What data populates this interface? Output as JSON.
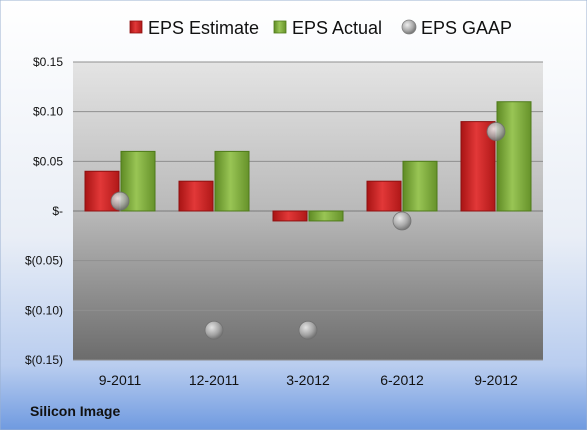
{
  "company": "Silicon Image",
  "chart_data": {
    "type": "bar",
    "categories": [
      "9-2011",
      "12-2011",
      "3-2012",
      "6-2012",
      "9-2012"
    ],
    "series": [
      {
        "name": "EPS Estimate",
        "kind": "bar",
        "color": "#cc2222",
        "values": [
          0.04,
          0.03,
          -0.01,
          0.03,
          0.09
        ]
      },
      {
        "name": "EPS Actual",
        "kind": "bar",
        "color": "#7fae3c",
        "values": [
          0.06,
          0.06,
          -0.01,
          0.05,
          0.11
        ]
      },
      {
        "name": "EPS GAAP",
        "kind": "marker",
        "color": "#a8a8a8",
        "values": [
          0.01,
          -0.12,
          -0.12,
          -0.01,
          0.08
        ]
      }
    ],
    "ylim": [
      -0.15,
      0.15
    ],
    "yticks": [
      0.15,
      0.1,
      0.05,
      0,
      -0.05,
      -0.1,
      -0.15
    ],
    "ytick_labels": [
      "$0.15",
      "$0.10",
      "$0.05",
      "$-",
      "$(0.05)",
      "$(0.10)",
      "$(0.15)"
    ],
    "grid": true,
    "legend": "top"
  }
}
